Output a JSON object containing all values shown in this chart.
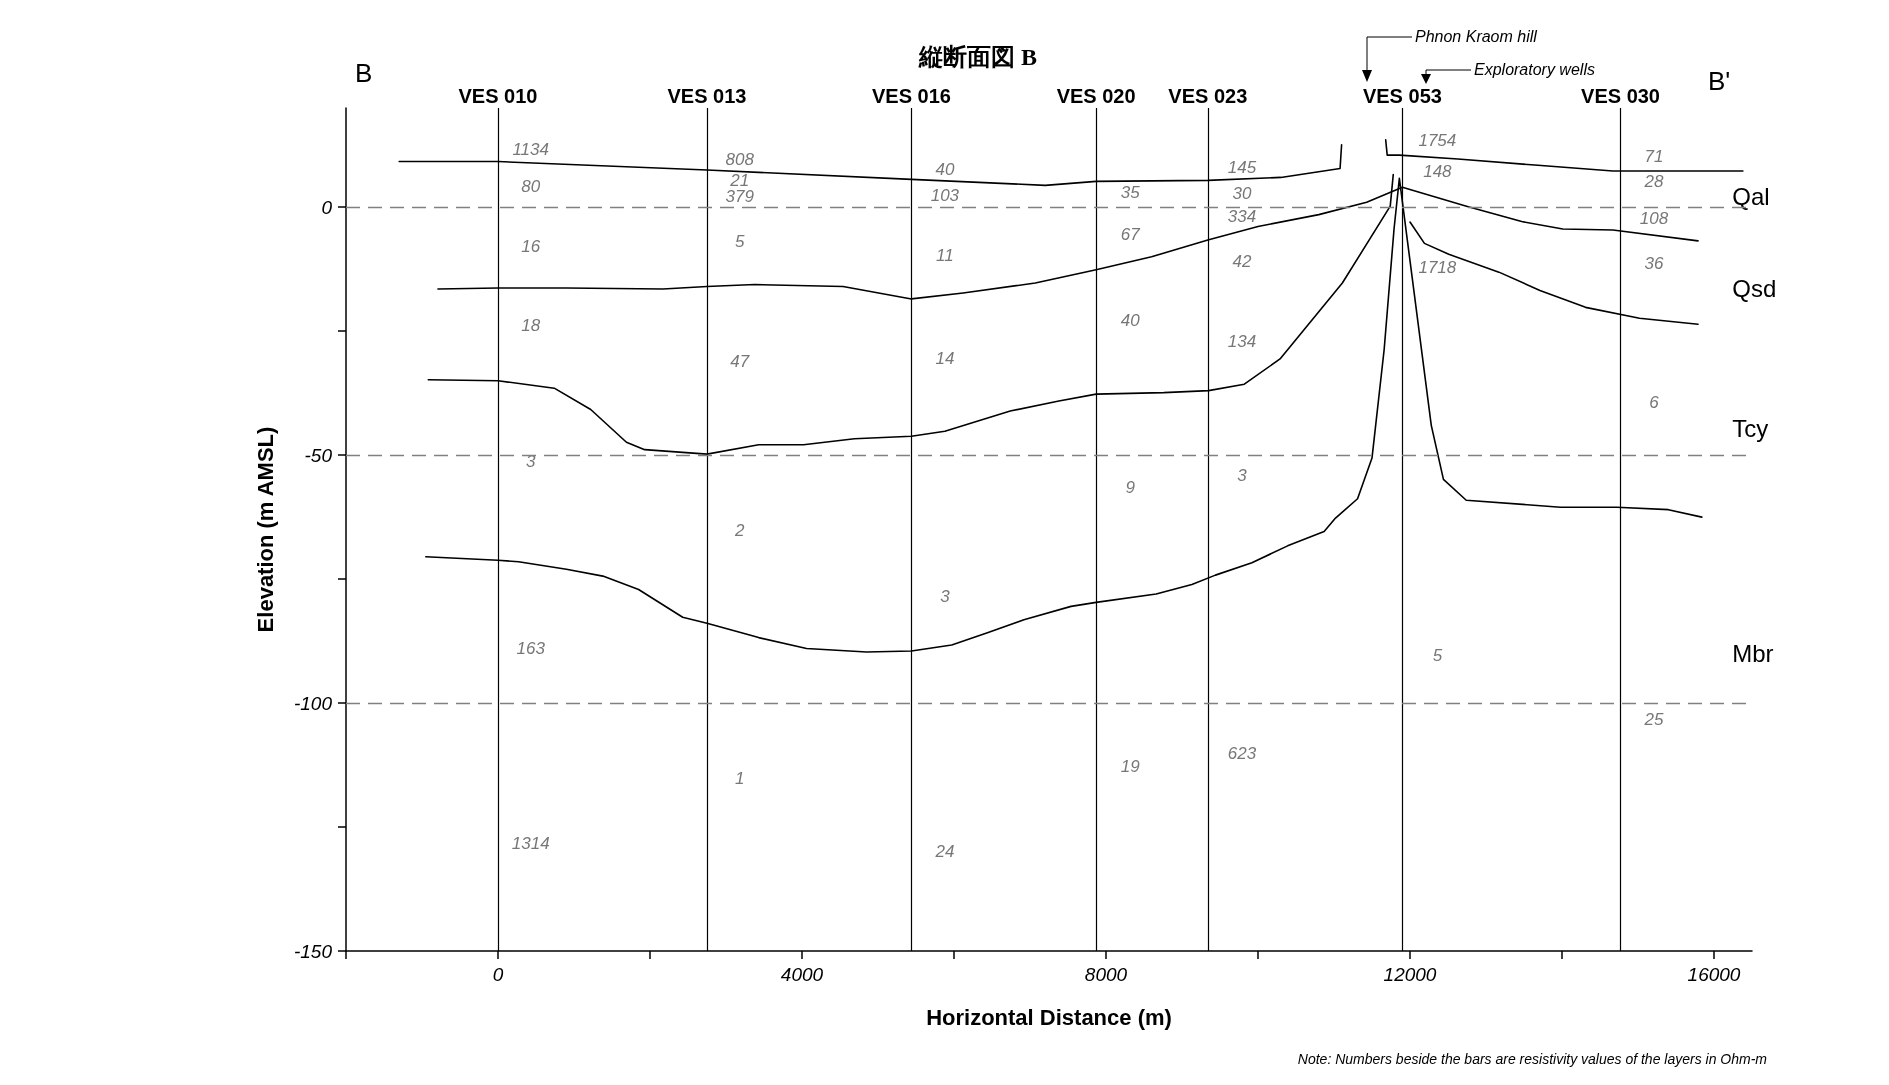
{
  "chart_data": {
    "type": "line",
    "title": "縦断面図 B",
    "xlabel": "Horizontal Distance (m)",
    "ylabel": "Elevation (m AMSL)",
    "xlim": [
      -2000,
      16500
    ],
    "ylim": [
      -150,
      20
    ],
    "xticks": [
      {
        "value": -2000,
        "label": null
      },
      0,
      {
        "value": 2000,
        "label": null
      },
      4000,
      {
        "value": 6000,
        "label": null
      },
      8000,
      {
        "value": 10000,
        "label": null
      },
      12000,
      {
        "value": 14000,
        "label": null
      },
      16000
    ],
    "yticks": [
      -150,
      {
        "value": -125,
        "label": null
      },
      -100,
      {
        "value": -75,
        "label": null
      },
      -50,
      {
        "value": -25,
        "label": null
      },
      0
    ],
    "grid": "y",
    "marker": "none",
    "line_style": "solid",
    "series": [
      {
        "color": "#000000",
        "x": [
          -1300,
          0,
          2750,
          5440,
          7200,
          7870,
          9340,
          10300,
          11080,
          11100,
          11400,
          11680,
          11700,
          11860,
          12630,
          13640,
          14670,
          16380
        ],
        "values": [
          9.2,
          9.2,
          7.5,
          5.6,
          4.4,
          5.2,
          5.4,
          6,
          7.8,
          12.6,
          null,
          13.6,
          10.5,
          10.5,
          9.7,
          8.5,
          7.3,
          7.3
        ]
      },
      {
        "color": "#000000",
        "x": [
          -790,
          0,
          900,
          2170,
          2750,
          3380,
          4540,
          5440,
          6120,
          7070,
          7870,
          8600,
          9340,
          10000,
          10800,
          11430,
          11900,
          12743,
          13470,
          14010,
          14670,
          15790
        ],
        "values": [
          -16.5,
          -16.3,
          -16.3,
          -16.5,
          -16,
          -15.6,
          -16,
          -18.5,
          -17.3,
          -15.3,
          -12.6,
          -10,
          -6.6,
          -3.9,
          -1.5,
          1,
          4,
          0.2,
          -2.9,
          -4.4,
          -4.6,
          -6.8
        ]
      },
      {
        "color": "#000000",
        "x": [
          -917,
          0,
          740,
          1220,
          1690,
          1930,
          2750,
          3430,
          4020,
          4690,
          5440,
          5880,
          6740,
          7380,
          7870,
          8760,
          9350,
          9820,
          10290,
          11110,
          11740,
          11780
        ],
        "values": [
          -34.8,
          -35,
          -36.5,
          -40.8,
          -47.4,
          -48.9,
          -49.8,
          -47.9,
          -47.9,
          -46.7,
          -46.2,
          -45.2,
          -41.1,
          -39.1,
          -37.7,
          -37.4,
          -37,
          -35.7,
          -30.6,
          -15.3,
          0.2,
          6.6
        ]
      },
      {
        "color": "#000000",
        "x": [
          12000,
          12190,
          12510,
          13170,
          13710,
          14310,
          15020,
          15790
        ],
        "values": [
          -3,
          -7.3,
          -9.5,
          -13.1,
          -16.8,
          -20.2,
          -22.4,
          -23.6
        ]
      },
      {
        "color": "#000000",
        "x": [
          -950,
          0,
          270,
          900,
          1380,
          1850,
          2430,
          2750,
          3430,
          4060,
          4850,
          5440,
          5970,
          6440,
          6920,
          7540,
          7870,
          8660,
          9130,
          9440,
          9920,
          10390,
          10870,
          11020,
          11310,
          11500,
          11660,
          11790,
          11860,
          12280,
          12440,
          12740,
          13980,
          14720,
          15400,
          15840
        ],
        "values": [
          -70.5,
          -71.2,
          -71.5,
          -73,
          -74.4,
          -77.1,
          -82.7,
          -83.9,
          -86.8,
          -89,
          -89.7,
          -89.5,
          -88.3,
          -85.8,
          -83.2,
          -80.5,
          -79.7,
          -78,
          -76.1,
          -74.2,
          -71.7,
          -68.3,
          -65.4,
          -62.7,
          -58.8,
          -50.6,
          -28.7,
          -4.4,
          5.8,
          -44,
          -54.9,
          -59.1,
          -60.5,
          -60.5,
          -61,
          -62.5
        ]
      }
    ],
    "ref_lines": [
      {
        "axis": "x",
        "value": 0,
        "label": "VES 010",
        "color": "#000000",
        "line_style": "solid"
      },
      {
        "axis": "x",
        "value": 2750,
        "label": "VES 013",
        "color": "#000000",
        "line_style": "solid"
      },
      {
        "axis": "x",
        "value": 5440,
        "label": "VES 016",
        "color": "#000000",
        "line_style": "solid"
      },
      {
        "axis": "x",
        "value": 7870,
        "label": "VES 020",
        "color": "#000000",
        "line_style": "solid"
      },
      {
        "axis": "x",
        "value": 9340,
        "label": "VES 023",
        "color": "#000000",
        "line_style": "solid"
      },
      {
        "axis": "x",
        "value": 11900,
        "label": "VES 053",
        "color": "#000000",
        "line_style": "solid"
      },
      {
        "axis": "x",
        "value": 14770,
        "label": "VES 030",
        "color": "#000000",
        "line_style": "solid"
      }
    ],
    "annotations": [
      "B",
      "B'",
      "Phnon Kraom hill",
      "Exploratory wells",
      "Note: Numbers beside the bars are resistivity values of the layers in Ohm-m",
      "1134",
      "80",
      "16",
      "18",
      "3",
      "163",
      "1314",
      "808",
      "21",
      "379",
      "5",
      "47",
      "2",
      "1",
      "40",
      "103",
      "11",
      "14",
      "3",
      "24",
      "35",
      "67",
      "40",
      "9",
      "19",
      "145",
      "30",
      "334",
      "42",
      "134",
      "3",
      "623",
      "1754",
      "148",
      "1718",
      "5",
      "71",
      "28",
      "108",
      "36",
      "6",
      "25",
      "Qal",
      "Qsd",
      "Tcy",
      "Mbr"
    ]
  }
}
